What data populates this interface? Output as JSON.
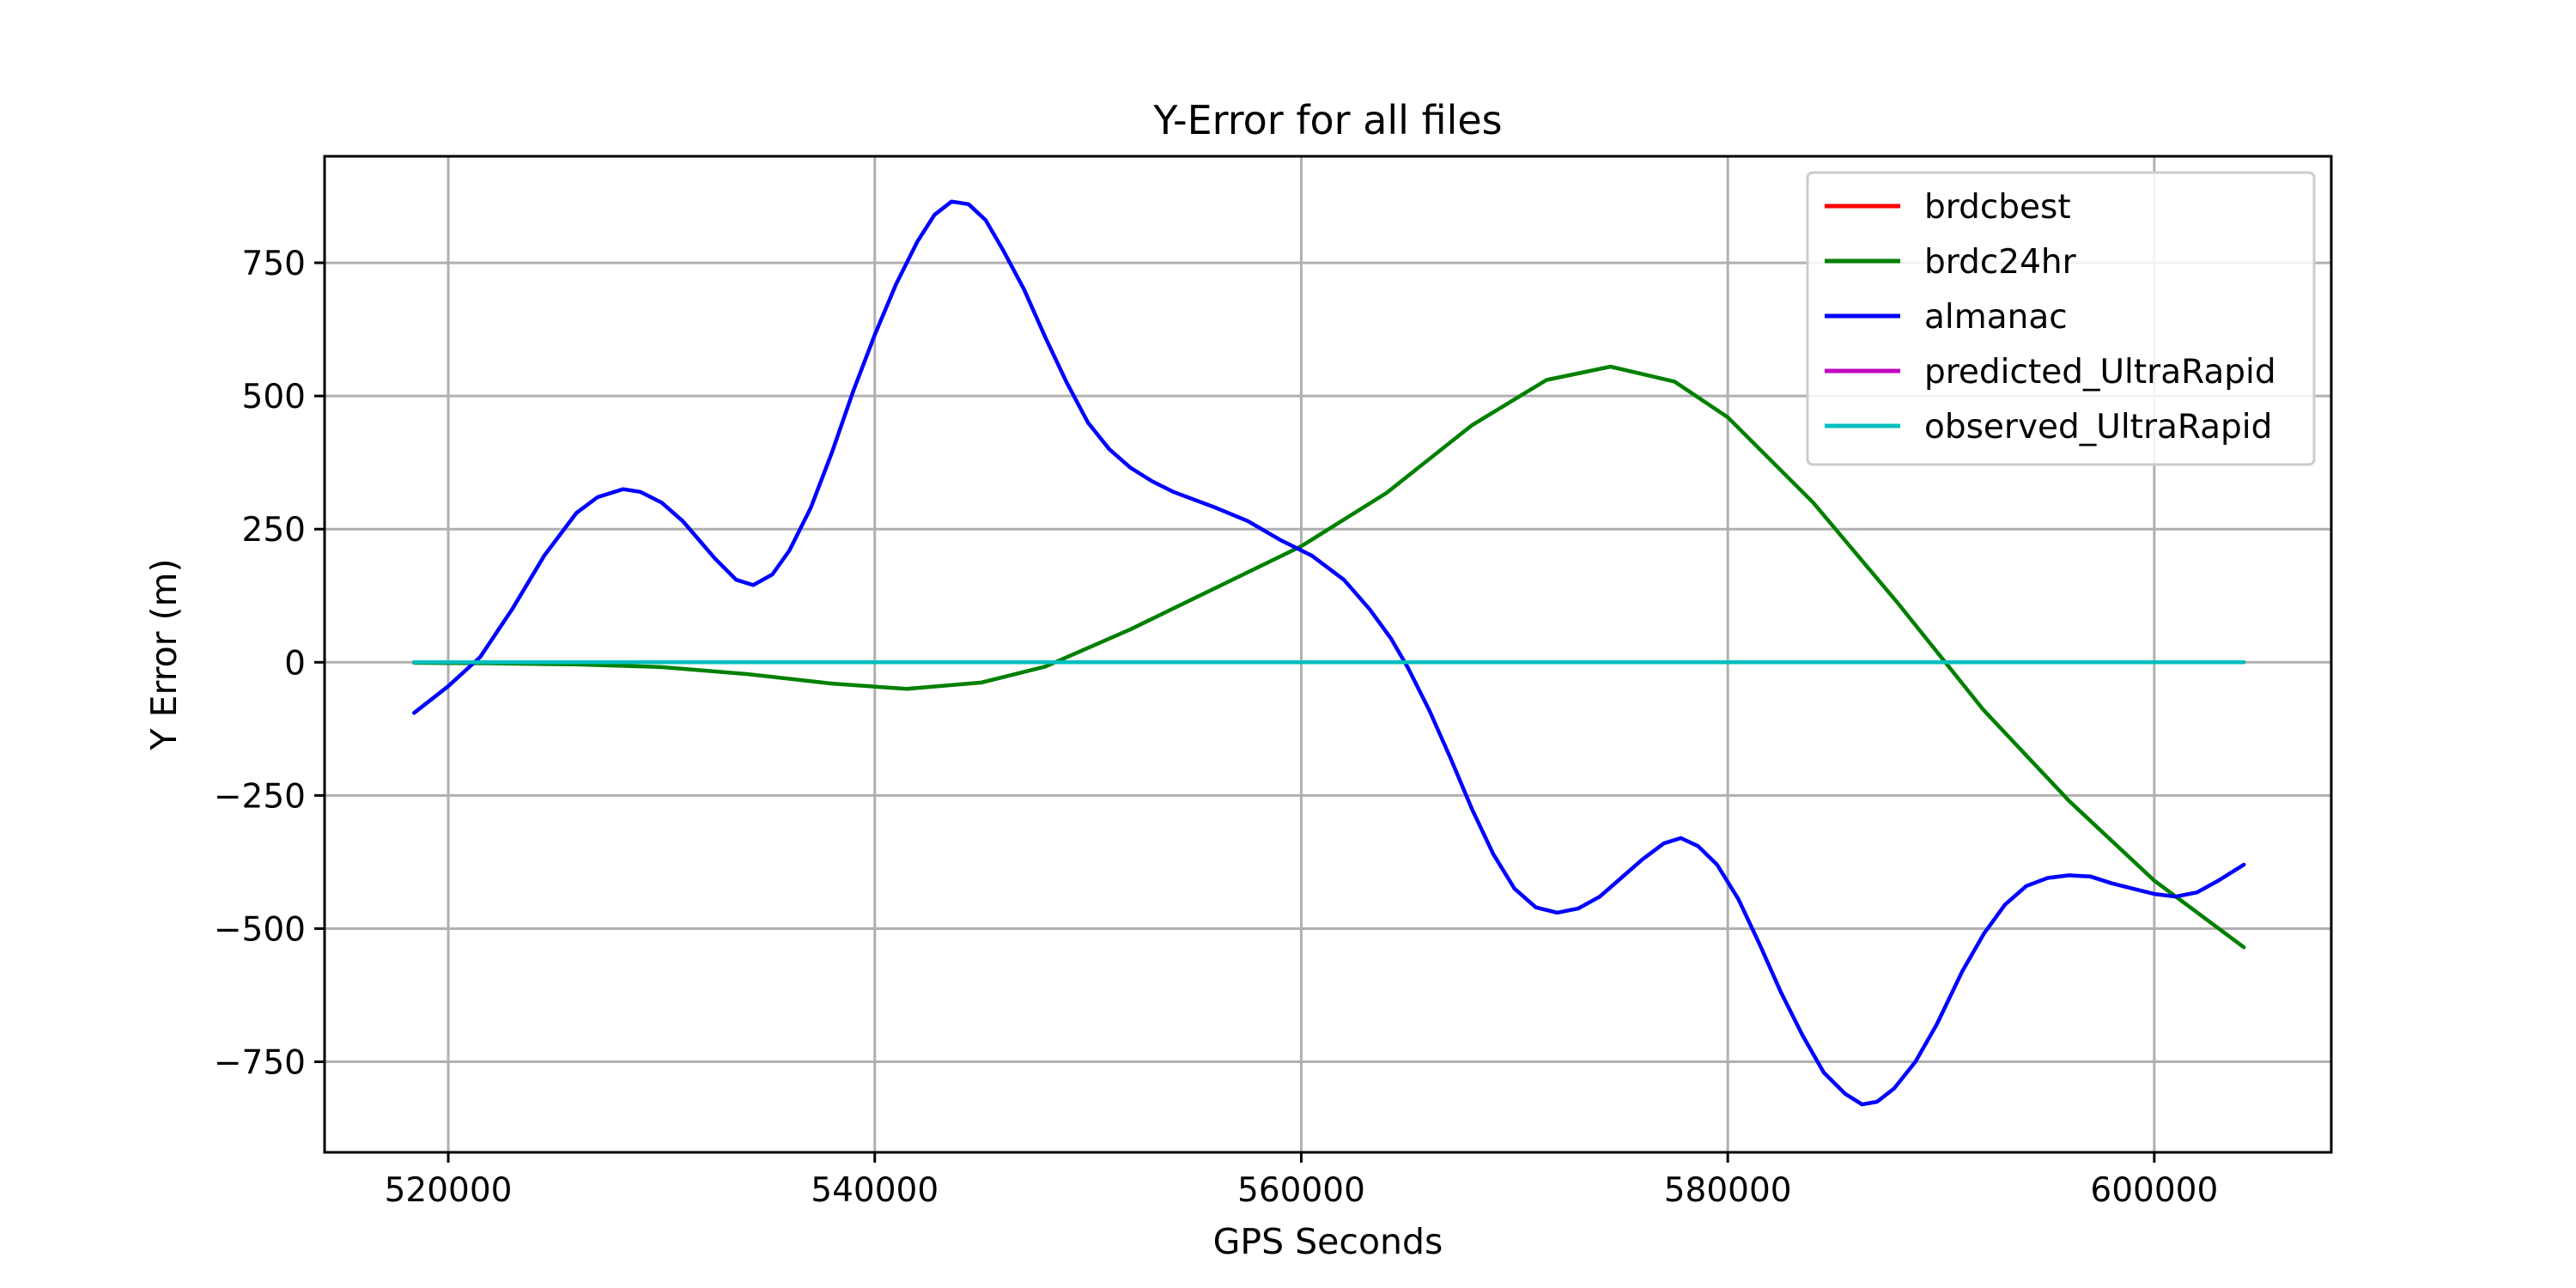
{
  "chart_data": {
    "type": "line",
    "title": "Y-Error for all files",
    "xlabel": "GPS Seconds",
    "ylabel": "Y Error (m)",
    "xlim": [
      514200,
      608300
    ],
    "ylim": [
      -920,
      950
    ],
    "xticks": [
      520000,
      540000,
      560000,
      580000,
      600000
    ],
    "xtick_labels": [
      "520000",
      "540000",
      "560000",
      "580000",
      "600000"
    ],
    "yticks": [
      -750,
      -500,
      -250,
      0,
      250,
      500,
      750
    ],
    "ytick_labels": [
      "−750",
      "−500",
      "−250",
      "0",
      "250",
      "500",
      "750"
    ],
    "grid": true,
    "legend_position": "upper right",
    "series": [
      {
        "name": "brdcbest",
        "color": "#ff0000",
        "x": [
          518400,
          604200
        ],
        "y": [
          0,
          0
        ]
      },
      {
        "name": "brdc24hr",
        "color": "#008000",
        "x": [
          518400,
          522000,
          526000,
          530000,
          534000,
          538000,
          541500,
          545000,
          548000,
          552000,
          556000,
          560000,
          564000,
          568000,
          571500,
          574500,
          577500,
          580000,
          584000,
          588000,
          592000,
          596000,
          600000,
          604200
        ],
        "y": [
          -1,
          -2,
          -4,
          -9,
          -22,
          -40,
          -50,
          -38,
          -8,
          62,
          140,
          218,
          318,
          445,
          530,
          555,
          527,
          460,
          300,
          110,
          -90,
          -260,
          -410,
          -535
        ]
      },
      {
        "name": "almanac",
        "color": "#0000ff",
        "x": [
          518400,
          520000,
          521500,
          523000,
          524500,
          526000,
          527000,
          528200,
          529000,
          530000,
          531000,
          532500,
          533500,
          534300,
          535200,
          536000,
          537000,
          538000,
          539000,
          540000,
          541000,
          542000,
          542800,
          543600,
          544400,
          545200,
          546000,
          547000,
          548000,
          549000,
          550000,
          551000,
          552000,
          553000,
          554000,
          555000,
          556000,
          557500,
          559000,
          560500,
          562000,
          563200,
          564200,
          565000,
          566000,
          567000,
          568000,
          569000,
          570000,
          571000,
          572000,
          573000,
          574000,
          575000,
          576000,
          577000,
          577800,
          578600,
          579500,
          580500,
          581500,
          582500,
          583500,
          584500,
          585500,
          586300,
          587000,
          587800,
          588800,
          589800,
          591000,
          592000,
          593000,
          594000,
          595000,
          596000,
          597000,
          598000,
          599000,
          600000,
          601000,
          602000,
          603000,
          604200
        ],
        "y": [
          -95,
          -45,
          10,
          100,
          200,
          280,
          310,
          325,
          320,
          300,
          265,
          195,
          155,
          145,
          165,
          210,
          290,
          395,
          510,
          615,
          710,
          790,
          840,
          865,
          860,
          830,
          775,
          700,
          610,
          525,
          450,
          400,
          365,
          340,
          320,
          305,
          290,
          265,
          230,
          200,
          155,
          100,
          45,
          -10,
          -90,
          -180,
          -275,
          -360,
          -425,
          -460,
          -470,
          -462,
          -440,
          -405,
          -370,
          -340,
          -330,
          -345,
          -380,
          -445,
          -530,
          -620,
          -700,
          -770,
          -810,
          -830,
          -825,
          -800,
          -750,
          -680,
          -580,
          -510,
          -455,
          -420,
          -405,
          -400,
          -402,
          -415,
          -425,
          -435,
          -440,
          -432,
          -410,
          -380
        ]
      },
      {
        "name": "predicted_UltraRapid",
        "color": "#bf00bf",
        "x": [
          518400,
          604200
        ],
        "y": [
          0,
          0
        ]
      },
      {
        "name": "observed_UltraRapid",
        "color": "#00bfbf",
        "x": [
          518400,
          530000,
          545000,
          560000,
          575000,
          590000,
          604200
        ],
        "y": [
          0,
          0,
          0,
          0,
          0,
          0,
          0
        ]
      }
    ]
  }
}
